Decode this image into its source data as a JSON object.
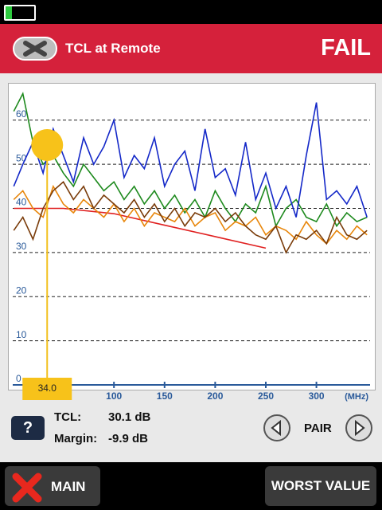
{
  "header": {
    "title": "TCL at Remote",
    "status": "FAIL"
  },
  "chart_data": {
    "type": "line",
    "x": [
      1,
      10,
      20,
      30,
      40,
      50,
      60,
      70,
      80,
      90,
      100,
      110,
      120,
      130,
      140,
      150,
      160,
      170,
      180,
      190,
      200,
      210,
      220,
      230,
      240,
      250,
      260,
      270,
      280,
      290,
      300,
      310,
      320,
      330,
      340,
      350
    ],
    "series": [
      {
        "name": "green",
        "color": "#1e8a1e",
        "values": [
          62,
          66,
          55,
          50,
          52,
          48,
          45,
          50,
          47,
          44,
          46,
          42,
          45,
          41,
          44,
          40,
          43,
          39,
          42,
          38,
          44,
          40,
          37,
          41,
          39,
          45,
          36,
          40,
          42,
          38,
          37,
          41,
          36,
          39,
          37,
          38
        ]
      },
      {
        "name": "blue",
        "color": "#1428c8",
        "values": [
          45,
          50,
          55,
          48,
          58,
          52,
          46,
          56,
          50,
          54,
          60,
          47,
          52,
          49,
          56,
          45,
          50,
          53,
          44,
          58,
          47,
          49,
          43,
          55,
          42,
          48,
          40,
          45,
          38,
          52,
          64,
          42,
          44,
          41,
          45,
          38
        ]
      },
      {
        "name": "orange",
        "color": "#e8860a",
        "values": [
          42,
          44,
          40,
          38,
          45,
          41,
          39,
          42,
          40,
          38,
          41,
          37,
          40,
          36,
          39,
          38,
          37,
          40,
          36,
          38,
          39,
          35,
          37,
          36,
          38,
          34,
          36,
          35,
          33,
          37,
          34,
          32,
          35,
          33,
          36,
          34
        ]
      },
      {
        "name": "brown",
        "color": "#7a3c0a",
        "values": [
          35,
          38,
          33,
          40,
          44,
          46,
          42,
          45,
          40,
          43,
          41,
          39,
          42,
          38,
          41,
          37,
          40,
          36,
          39,
          38,
          40,
          37,
          39,
          36,
          34,
          33,
          36,
          30,
          34,
          33,
          35,
          32,
          38,
          34,
          33,
          35
        ]
      }
    ],
    "limit": {
      "color": "#e02020",
      "x": [
        1,
        50,
        100,
        150,
        200,
        250
      ],
      "values": [
        40,
        40,
        38.8,
        36.2,
        33.6,
        31
      ]
    },
    "xlim": [
      0,
      353
    ],
    "ylim": [
      0,
      67
    ],
    "xticks": [
      100,
      150,
      200,
      250,
      300
    ],
    "yticks": [
      0,
      10,
      20,
      30,
      40,
      50,
      60
    ],
    "x_unit": "(MHz)",
    "grid": true,
    "cursor": {
      "value": 34,
      "label": "34.0"
    }
  },
  "readout": {
    "tcl_label": "TCL:",
    "tcl_value": "30.1 dB",
    "margin_label": "Margin:",
    "margin_value": "-9.9 dB"
  },
  "controls": {
    "help": "?",
    "pair": "PAIR"
  },
  "footer": {
    "main": "MAIN",
    "worst": "WORST VALUE"
  }
}
